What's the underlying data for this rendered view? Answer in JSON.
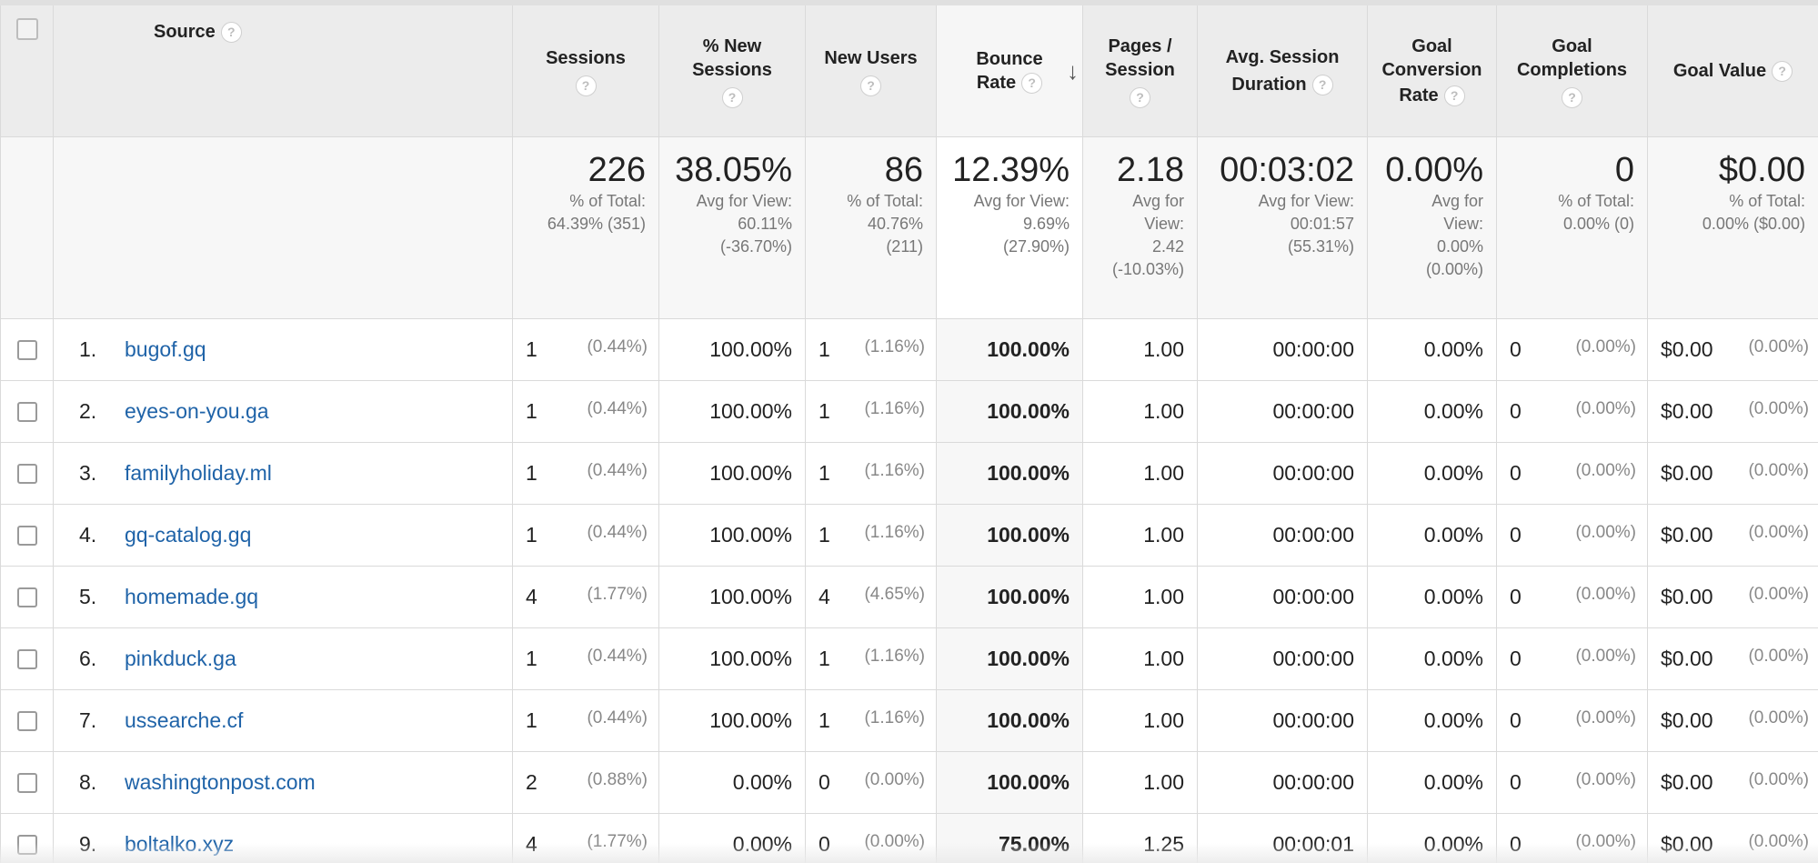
{
  "header": {
    "source": "Source",
    "sessions": "Sessions",
    "new_sessions_1": "% New",
    "new_sessions_2": "Sessions",
    "new_users": "New Users",
    "bounce_1": "Bounce",
    "bounce_2": "Rate",
    "pages_1": "Pages /",
    "pages_2": "Session",
    "duration_1": "Avg. Session",
    "duration_2": "Duration",
    "gcr_1": "Goal",
    "gcr_2": "Conversion",
    "gcr_3": "Rate",
    "gcomp_1": "Goal",
    "gcomp_2": "Completions",
    "goal_value": "Goal Value",
    "help": "?",
    "sort_arrow": "↓"
  },
  "summary": {
    "sessions": {
      "value": "226",
      "l1": "% of Total:",
      "l2": "64.39% (351)"
    },
    "new_sessions": {
      "value": "38.05%",
      "l1": "Avg for View:",
      "l2": "60.11%",
      "l3": "(-36.70%)"
    },
    "new_users": {
      "value": "86",
      "l1": "% of Total:",
      "l2": "40.76%",
      "l3": "(211)"
    },
    "bounce": {
      "value": "12.39%",
      "l1": "Avg for View:",
      "l2": "9.69%",
      "l3": "(27.90%)"
    },
    "pages": {
      "value": "2.18",
      "l1": "Avg for",
      "l2": "View:",
      "l3": "2.42",
      "l4": "(-10.03%)"
    },
    "duration": {
      "value": "00:03:02",
      "l1": "Avg for View:",
      "l2": "00:01:57",
      "l3": "(55.31%)"
    },
    "gcr": {
      "value": "0.00%",
      "l1": "Avg for",
      "l2": "View:",
      "l3": "0.00%",
      "l4": "(0.00%)"
    },
    "gcomp": {
      "value": "0",
      "l1": "% of Total:",
      "l2": "0.00% (0)"
    },
    "goal_value": {
      "value": "$0.00",
      "l1": "% of Total:",
      "l2": "0.00% ($0.00)"
    }
  },
  "rows": [
    {
      "idx": "1.",
      "source": "bugof.gq",
      "sessions": "1",
      "sessions_pct": "(0.44%)",
      "new_sessions": "100.00%",
      "new_users": "1",
      "new_users_pct": "(1.16%)",
      "bounce": "100.00%",
      "pages": "1.00",
      "duration": "00:00:00",
      "gcr": "0.00%",
      "gcomp": "0",
      "gcomp_pct": "(0.00%)",
      "gv": "$0.00",
      "gv_pct": "(0.00%)"
    },
    {
      "idx": "2.",
      "source": "eyes-on-you.ga",
      "sessions": "1",
      "sessions_pct": "(0.44%)",
      "new_sessions": "100.00%",
      "new_users": "1",
      "new_users_pct": "(1.16%)",
      "bounce": "100.00%",
      "pages": "1.00",
      "duration": "00:00:00",
      "gcr": "0.00%",
      "gcomp": "0",
      "gcomp_pct": "(0.00%)",
      "gv": "$0.00",
      "gv_pct": "(0.00%)"
    },
    {
      "idx": "3.",
      "source": "familyholiday.ml",
      "sessions": "1",
      "sessions_pct": "(0.44%)",
      "new_sessions": "100.00%",
      "new_users": "1",
      "new_users_pct": "(1.16%)",
      "bounce": "100.00%",
      "pages": "1.00",
      "duration": "00:00:00",
      "gcr": "0.00%",
      "gcomp": "0",
      "gcomp_pct": "(0.00%)",
      "gv": "$0.00",
      "gv_pct": "(0.00%)"
    },
    {
      "idx": "4.",
      "source": "gq-catalog.gq",
      "sessions": "1",
      "sessions_pct": "(0.44%)",
      "new_sessions": "100.00%",
      "new_users": "1",
      "new_users_pct": "(1.16%)",
      "bounce": "100.00%",
      "pages": "1.00",
      "duration": "00:00:00",
      "gcr": "0.00%",
      "gcomp": "0",
      "gcomp_pct": "(0.00%)",
      "gv": "$0.00",
      "gv_pct": "(0.00%)"
    },
    {
      "idx": "5.",
      "source": "homemade.gq",
      "sessions": "4",
      "sessions_pct": "(1.77%)",
      "new_sessions": "100.00%",
      "new_users": "4",
      "new_users_pct": "(4.65%)",
      "bounce": "100.00%",
      "pages": "1.00",
      "duration": "00:00:00",
      "gcr": "0.00%",
      "gcomp": "0",
      "gcomp_pct": "(0.00%)",
      "gv": "$0.00",
      "gv_pct": "(0.00%)"
    },
    {
      "idx": "6.",
      "source": "pinkduck.ga",
      "sessions": "1",
      "sessions_pct": "(0.44%)",
      "new_sessions": "100.00%",
      "new_users": "1",
      "new_users_pct": "(1.16%)",
      "bounce": "100.00%",
      "pages": "1.00",
      "duration": "00:00:00",
      "gcr": "0.00%",
      "gcomp": "0",
      "gcomp_pct": "(0.00%)",
      "gv": "$0.00",
      "gv_pct": "(0.00%)"
    },
    {
      "idx": "7.",
      "source": "ussearche.cf",
      "sessions": "1",
      "sessions_pct": "(0.44%)",
      "new_sessions": "100.00%",
      "new_users": "1",
      "new_users_pct": "(1.16%)",
      "bounce": "100.00%",
      "pages": "1.00",
      "duration": "00:00:00",
      "gcr": "0.00%",
      "gcomp": "0",
      "gcomp_pct": "(0.00%)",
      "gv": "$0.00",
      "gv_pct": "(0.00%)"
    },
    {
      "idx": "8.",
      "source": "washingtonpost.com",
      "sessions": "2",
      "sessions_pct": "(0.88%)",
      "new_sessions": "0.00%",
      "new_users": "0",
      "new_users_pct": "(0.00%)",
      "bounce": "100.00%",
      "pages": "1.00",
      "duration": "00:00:00",
      "gcr": "0.00%",
      "gcomp": "0",
      "gcomp_pct": "(0.00%)",
      "gv": "$0.00",
      "gv_pct": "(0.00%)"
    },
    {
      "idx": "9.",
      "source": "boltalko.xyz",
      "sessions": "4",
      "sessions_pct": "(1.77%)",
      "new_sessions": "0.00%",
      "new_users": "0",
      "new_users_pct": "(0.00%)",
      "bounce": "75.00%",
      "pages": "1.25",
      "duration": "00:00:01",
      "gcr": "0.00%",
      "gcomp": "0",
      "gcomp_pct": "(0.00%)",
      "gv": "$0.00",
      "gv_pct": "(0.00%)"
    }
  ]
}
